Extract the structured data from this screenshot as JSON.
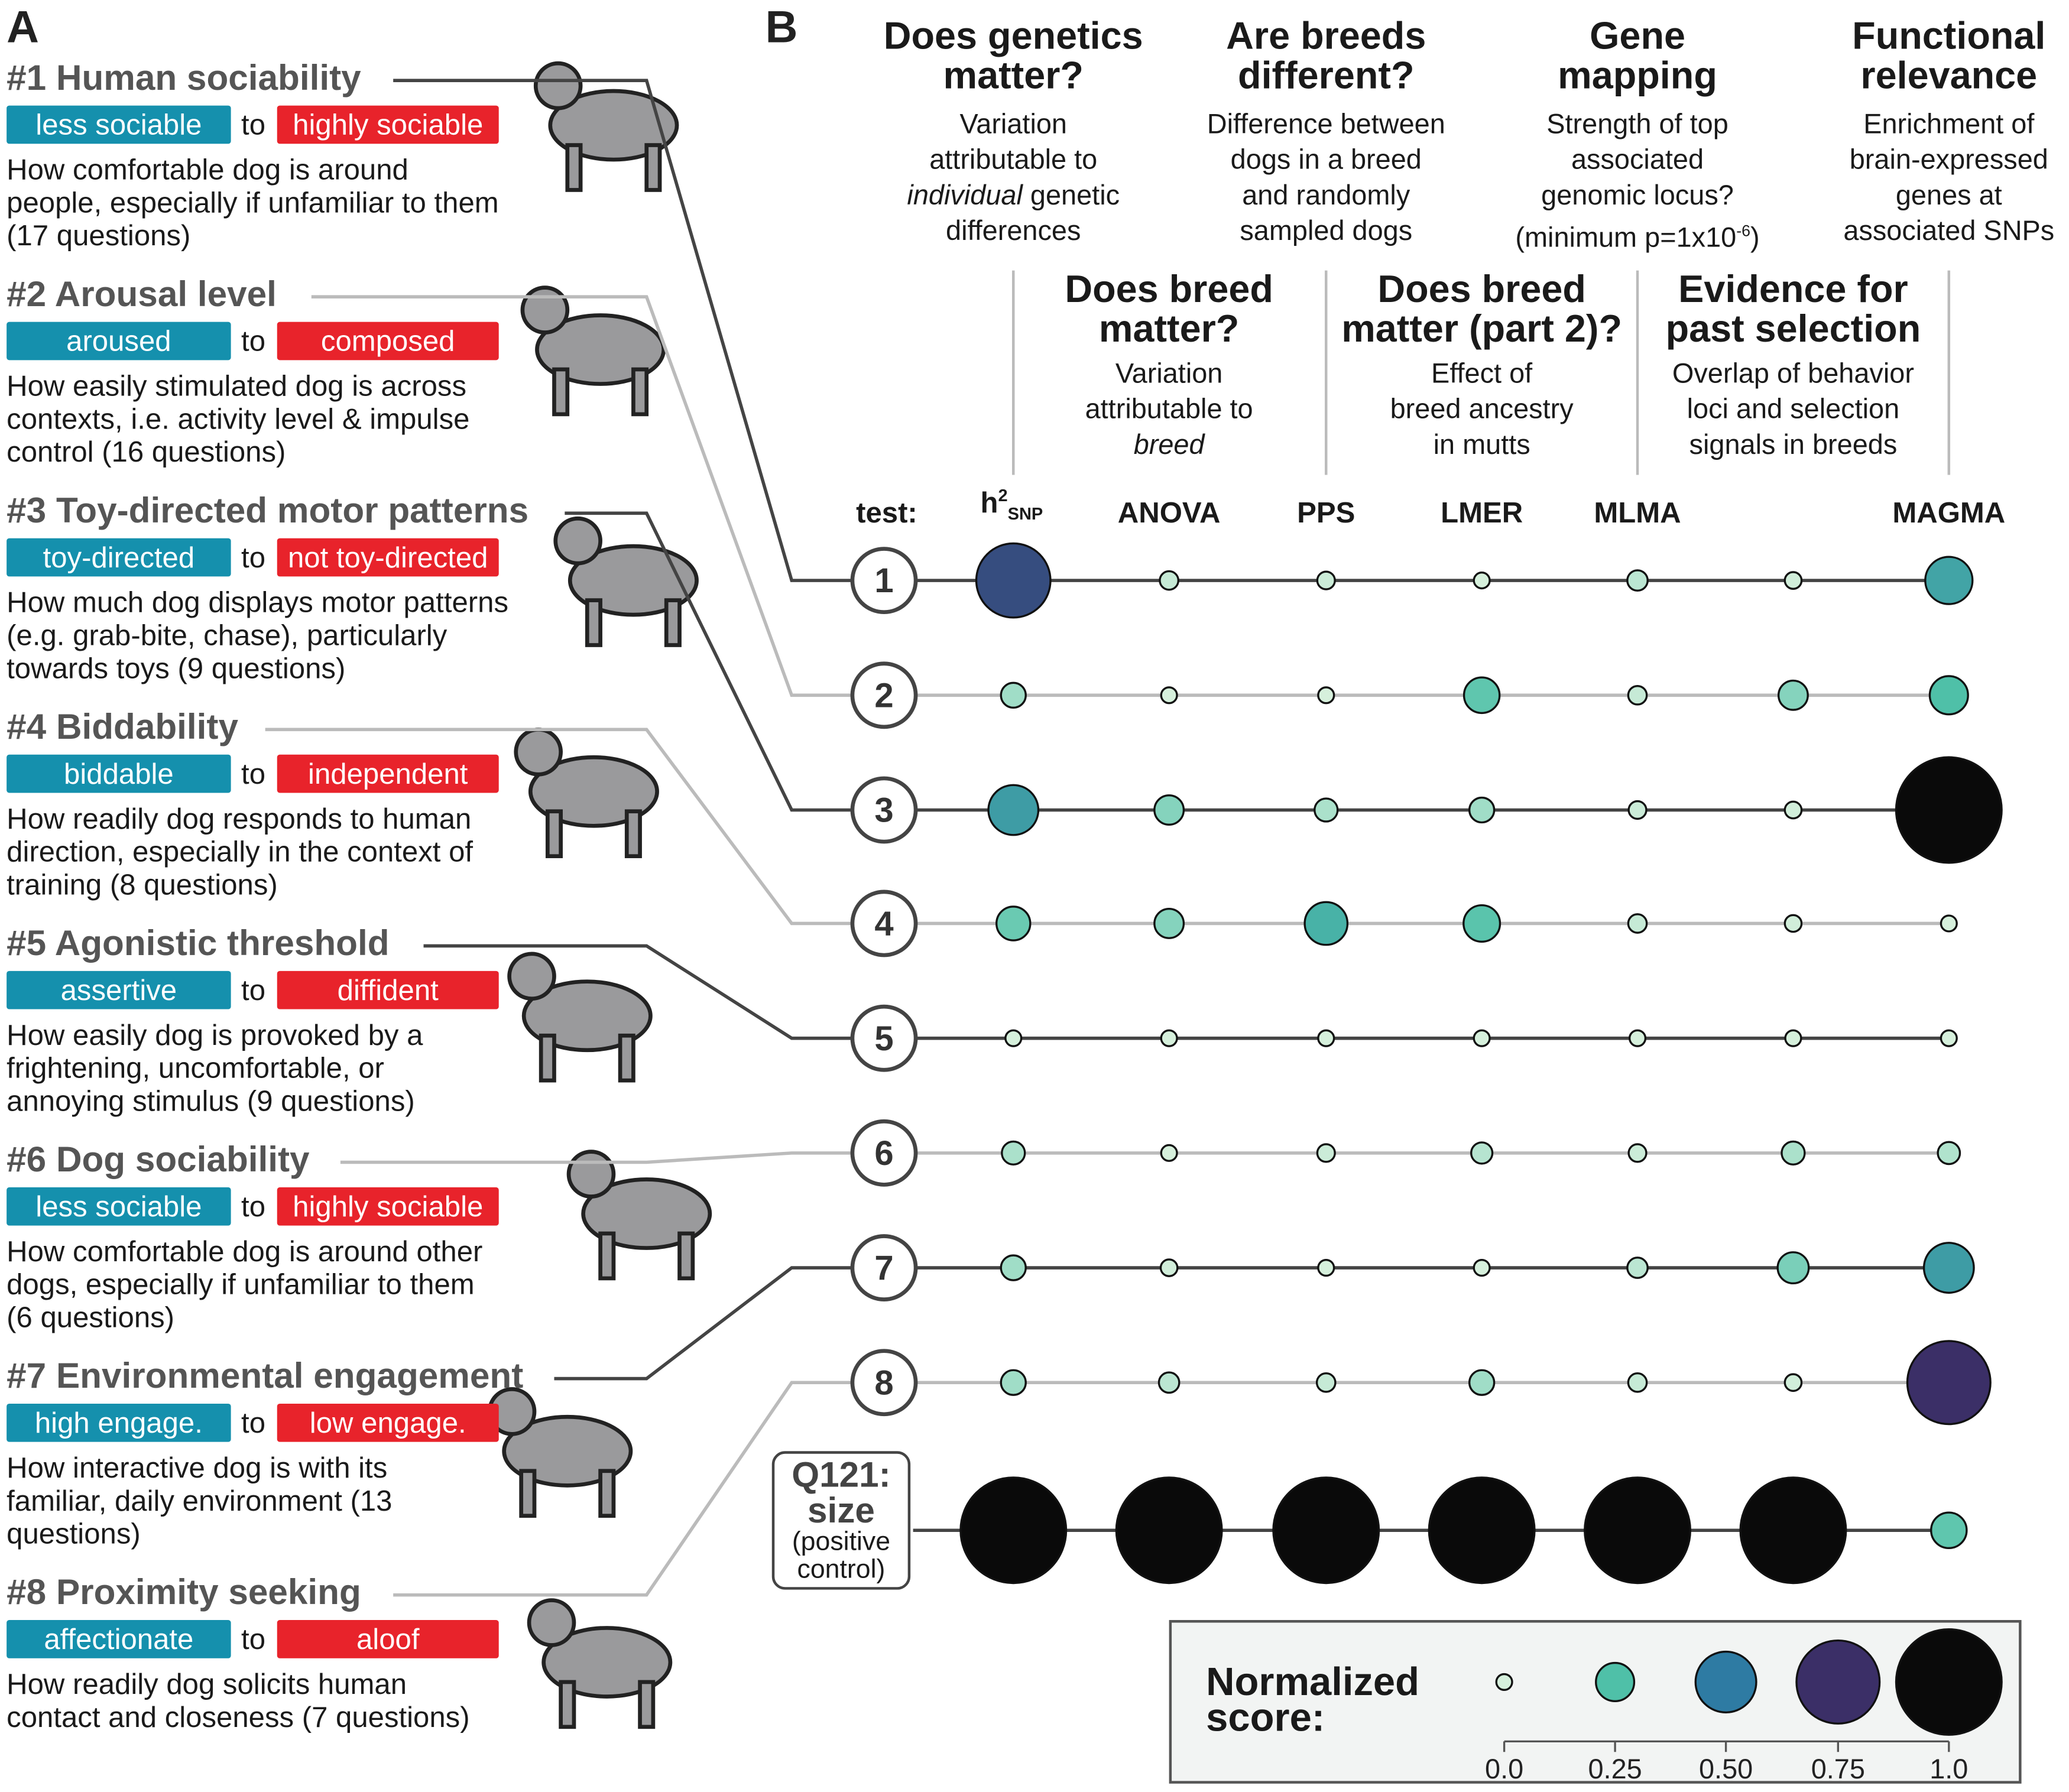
{
  "panel_a": {
    "letter": "A",
    "traits": [
      {
        "title": "#1 Human sociability",
        "low": "less sociable",
        "to": "to",
        "high": "highly sociable",
        "desc": [
          "How comfortable dog is around",
          "people, especially if unfamiliar to them",
          "(17 questions)"
        ]
      },
      {
        "title": "#2 Arousal level",
        "low": "aroused",
        "to": "to",
        "high": "composed",
        "desc": [
          "How easily stimulated dog is across",
          "contexts, i.e. activity level & impulse",
          "control (16 questions)"
        ]
      },
      {
        "title": "#3 Toy-directed motor patterns",
        "low": "toy-directed",
        "to": "to",
        "high": "not toy-directed",
        "desc": [
          "How much dog displays motor patterns",
          "(e.g. grab-bite, chase), particularly",
          "towards toys (9 questions)"
        ]
      },
      {
        "title": "#4 Biddability",
        "low": "biddable",
        "to": "to",
        "high": "independent",
        "desc": [
          "How readily dog responds to human",
          "direction, especially in the context of",
          "training (8 questions)"
        ]
      },
      {
        "title": "#5 Agonistic threshold",
        "low": "assertive",
        "to": "to",
        "high": "diffident",
        "desc": [
          "How easily dog is provoked by a",
          "frightening, uncomfortable, or",
          "annoying stimulus (9 questions)"
        ]
      },
      {
        "title": "#6 Dog sociability",
        "low": "less sociable",
        "to": "to",
        "high": "highly sociable",
        "desc": [
          "How comfortable dog is around other",
          "dogs, especially if unfamiliar to them",
          "(6 questions)"
        ]
      },
      {
        "title": "#7 Environmental engagement",
        "low": "high engage.",
        "to": "to",
        "high": "low engage.",
        "desc": [
          "How interactive dog is with its",
          "familiar, daily environment (13",
          "questions)"
        ]
      },
      {
        "title": "#8 Proximity seeking",
        "low": "affectionate",
        "to": "to",
        "high": "aloof",
        "desc": [
          "How readily dog solicits human",
          "contact and closeness (7 questions)"
        ]
      }
    ]
  },
  "panel_b": {
    "letter": "B",
    "questions_top": [
      {
        "title": [
          "Does genetics",
          "matter?"
        ],
        "desc": {
          "l1": "Variation",
          "l2": "attributable to",
          "l3_italic": "individual",
          "l3_rest": " genetic",
          "l4": "differences"
        }
      },
      {
        "title": [
          "Are breeds",
          "different?"
        ],
        "desc": {
          "l1": "Difference between",
          "l2": "dogs in a breed",
          "l3": "and randomly",
          "l4": "sampled dogs"
        }
      },
      {
        "title": [
          "Gene",
          "mapping"
        ],
        "desc": {
          "l1": "Strength of top",
          "l2": "associated",
          "l3": "genomic locus?",
          "l4_pre": "(minimum p=1x10",
          "l4_sup": "-6",
          "l4_post": ")"
        }
      },
      {
        "title": [
          "Functional",
          "relevance"
        ],
        "desc": {
          "l1": "Enrichment of",
          "l2": "brain-expressed",
          "l3": "genes at",
          "l4": "associated SNPs"
        }
      }
    ],
    "questions_mid": [
      {
        "title": [
          "Does breed",
          "matter?"
        ],
        "desc": {
          "l1": "Variation",
          "l2": "attributable to",
          "l3_italic": "breed"
        }
      },
      {
        "title": [
          "Does breed",
          "matter (part 2)?"
        ],
        "desc": {
          "l1": "Effect of",
          "l2": "breed ancestry",
          "l3": "in mutts"
        }
      },
      {
        "title": [
          "Evidence for",
          "past selection"
        ],
        "desc": {
          "l1": "Overlap of behavior",
          "l2": "loci and selection",
          "l3": "signals in breeds"
        }
      }
    ],
    "test_label": "test:",
    "h2snp": {
      "h": "h",
      "sup": "2",
      "sub": "SNP"
    },
    "q121": {
      "l1": "Q121:",
      "l2": "size",
      "l3": "(positive",
      "l4": "control)"
    },
    "legend": {
      "title1": "Normalized",
      "title2": "score:"
    }
  },
  "chart_data": {
    "type": "bubble-matrix",
    "tests": [
      "h2SNP",
      "ANOVA",
      "PPS",
      "LMER",
      "MLMA",
      "",
      "MAGMA"
    ],
    "test_labels_shown": [
      "ANOVA",
      "PPS",
      "LMER",
      "MLMA",
      "MAGMA"
    ],
    "rows": [
      "1",
      "2",
      "3",
      "4",
      "5",
      "6",
      "7",
      "8",
      "Q121"
    ],
    "values": [
      [
        0.65,
        0.03,
        0.02,
        0.0,
        0.05,
        0.01,
        0.35
      ],
      [
        0.1,
        0.0,
        0.0,
        0.22,
        0.03,
        0.15,
        0.25
      ],
      [
        0.38,
        0.15,
        0.08,
        0.1,
        0.02,
        0.01,
        1.0
      ],
      [
        0.2,
        0.15,
        0.3,
        0.23,
        0.03,
        0.01,
        0.0
      ],
      [
        0.0,
        0.0,
        0.0,
        0.0,
        0.0,
        0.0,
        0.0
      ],
      [
        0.08,
        0.0,
        0.02,
        0.06,
        0.02,
        0.08,
        0.07
      ],
      [
        0.1,
        0.01,
        0.0,
        0.0,
        0.05,
        0.17,
        0.38
      ],
      [
        0.1,
        0.05,
        0.03,
        0.1,
        0.03,
        0.01,
        0.75
      ],
      [
        1.0,
        1.0,
        1.0,
        1.0,
        1.0,
        1.0,
        0.22
      ]
    ],
    "size_legend": {
      "title": "Normalized score:",
      "values": [
        0.0,
        0.25,
        0.5,
        0.75,
        1.0
      ],
      "tick_labels": [
        "0.0",
        "0.25",
        "0.50",
        "0.75",
        "1.0"
      ]
    },
    "colorscale": [
      "#d6f0dc",
      "#4fc0a8",
      "#2e7ba3",
      "#3b2f67",
      "#0a0a0a"
    ],
    "row_line_colors": {
      "dark": "#444444",
      "light": "#bbbbbb"
    }
  }
}
